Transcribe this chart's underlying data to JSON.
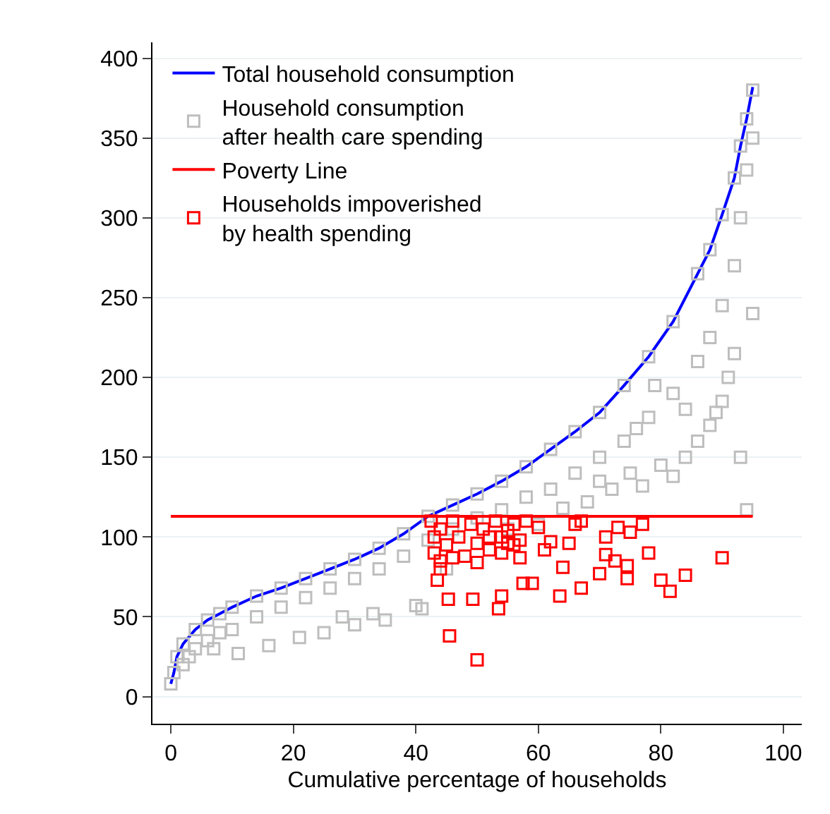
{
  "chart_data": {
    "type": "scatter",
    "xlabel": "Cumulative percentage of households",
    "xlim": [
      -3,
      103
    ],
    "ylim": [
      -17,
      410
    ],
    "xticks": [
      0,
      20,
      40,
      60,
      80,
      100
    ],
    "yticks": [
      0,
      50,
      100,
      150,
      200,
      250,
      300,
      350,
      400
    ],
    "grid": "y",
    "legend": "top left",
    "series": [
      {
        "name": "Total household consumption",
        "type": "line",
        "marker": "none",
        "color": "#0000ff",
        "x": [
          0,
          0.5,
          1,
          2,
          4,
          6,
          8,
          10,
          14,
          18,
          22,
          26,
          30,
          34,
          38,
          42,
          46,
          50,
          54,
          58,
          62,
          66,
          70,
          74,
          78,
          82,
          86,
          88,
          90,
          92,
          93,
          94,
          95
        ],
        "values": [
          8,
          15,
          25,
          33,
          42,
          48,
          52,
          56,
          63,
          68,
          74,
          80,
          86,
          93,
          102,
          113,
          120,
          127,
          135,
          144,
          155,
          166,
          178,
          195,
          213,
          235,
          265,
          280,
          302,
          325,
          345,
          362,
          382
        ]
      },
      {
        "name": "Household consumption after health care spending",
        "marker": "square",
        "color": "#bebebe",
        "x": [
          0,
          0.5,
          1,
          2,
          4,
          6,
          8,
          10,
          14,
          18,
          22,
          26,
          30,
          34,
          38,
          42,
          46,
          50,
          54,
          58,
          62,
          66,
          70,
          74,
          78,
          82,
          86,
          88,
          90,
          92,
          93,
          94,
          95,
          2,
          4,
          6,
          8,
          10,
          14,
          18,
          22,
          26,
          30,
          34,
          38,
          42,
          46,
          50,
          54,
          58,
          62,
          66,
          70,
          74,
          78,
          82,
          86,
          88,
          90,
          92,
          93,
          94,
          95,
          3,
          7,
          11,
          16,
          21,
          25,
          30,
          35,
          40,
          41,
          28,
          33,
          45,
          55,
          60,
          64,
          68,
          72,
          75,
          77,
          80,
          82,
          84,
          86,
          88,
          89,
          90,
          91,
          92,
          93,
          94,
          95,
          84,
          79,
          76,
          70
        ],
        "values": [
          8,
          15,
          25,
          33,
          42,
          48,
          52,
          56,
          63,
          68,
          74,
          80,
          86,
          93,
          102,
          113,
          120,
          127,
          135,
          144,
          155,
          166,
          178,
          195,
          213,
          235,
          265,
          280,
          302,
          325,
          345,
          362,
          380,
          20,
          30,
          35,
          40,
          42,
          50,
          56,
          62,
          68,
          74,
          80,
          88,
          98,
          105,
          112,
          117,
          125,
          130,
          140,
          150,
          160,
          175,
          190,
          210,
          225,
          245,
          270,
          300,
          330,
          350,
          25,
          30,
          27,
          32,
          37,
          40,
          45,
          48,
          57,
          55,
          50,
          52,
          80,
          105,
          108,
          118,
          122,
          130,
          140,
          132,
          145,
          138,
          150,
          160,
          170,
          178,
          185,
          200,
          215,
          150,
          117,
          240,
          180,
          195,
          168,
          135
        ]
      },
      {
        "name": "Poverty Line",
        "type": "line",
        "marker": "none",
        "color": "#ff0000",
        "x": [
          0,
          95
        ],
        "values": [
          113,
          113
        ]
      },
      {
        "name": "Households impoverished by health spending",
        "marker": "square",
        "color": "#ff0000",
        "x": [
          42.5,
          43,
          43,
          44,
          45,
          46,
          47,
          48,
          49,
          50,
          51,
          52,
          53,
          54,
          55,
          56,
          57,
          58,
          44,
          46,
          50,
          52,
          54,
          56,
          45.3,
          49.3,
          45.5,
          50,
          53.5,
          54,
          57.5,
          59,
          63.5,
          67,
          70,
          74.5,
          80,
          81.5,
          84,
          90,
          78,
          71,
          72.5,
          74.5,
          77,
          75,
          73,
          71,
          66,
          67,
          65,
          64,
          62,
          60,
          61,
          57,
          55,
          43.5,
          44
        ],
        "values": [
          110,
          100,
          90,
          105,
          95,
          110,
          100,
          88,
          108,
          96,
          105,
          92,
          110,
          100,
          104,
          108,
          98,
          110,
          85,
          87,
          84,
          100,
          90,
          95,
          61,
          61,
          38,
          23,
          55,
          63,
          71,
          71,
          63,
          68,
          77,
          74,
          73,
          66,
          76,
          87,
          90,
          89,
          85,
          82,
          108,
          103,
          106,
          100,
          108,
          110,
          96,
          81,
          97,
          106,
          92,
          87,
          96,
          73,
          80
        ]
      }
    ]
  }
}
